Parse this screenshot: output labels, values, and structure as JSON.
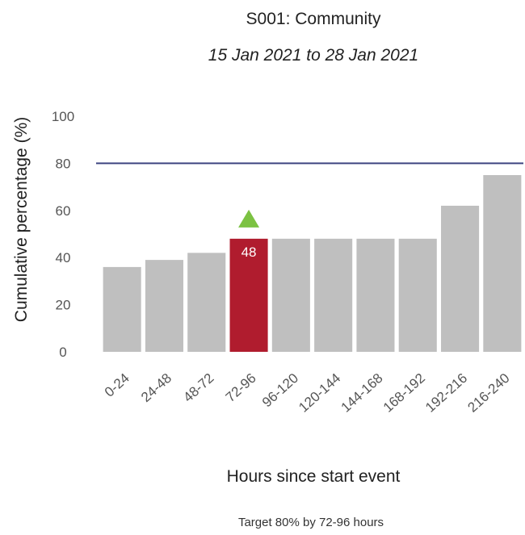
{
  "chart_data": {
    "type": "bar",
    "title": "S001: Community",
    "subtitle": "15 Jan 2021 to 28 Jan 2021",
    "xlabel": "Hours since start event",
    "ylabel": "Cumulative percentage (%)",
    "footnote": "Target 80% by 72-96 hours",
    "categories": [
      "0-24",
      "24-48",
      "48-72",
      "72-96",
      "96-120",
      "120-144",
      "144-168",
      "168-192",
      "192-216",
      "216-240"
    ],
    "values": [
      36,
      39,
      42,
      48,
      48,
      48,
      48,
      48,
      62,
      75
    ],
    "yticks": [
      0,
      20,
      40,
      60,
      80,
      100
    ],
    "ylim": [
      0,
      100
    ],
    "target": 80,
    "highlight_index": 3,
    "highlight_label": "48",
    "marker": "up-triangle",
    "colors": {
      "bar": "#bfbfbf",
      "highlight": "#b01c2e",
      "target_line": "#3d4480",
      "marker": "#7cc242"
    },
    "grid": false,
    "legend": "none"
  }
}
